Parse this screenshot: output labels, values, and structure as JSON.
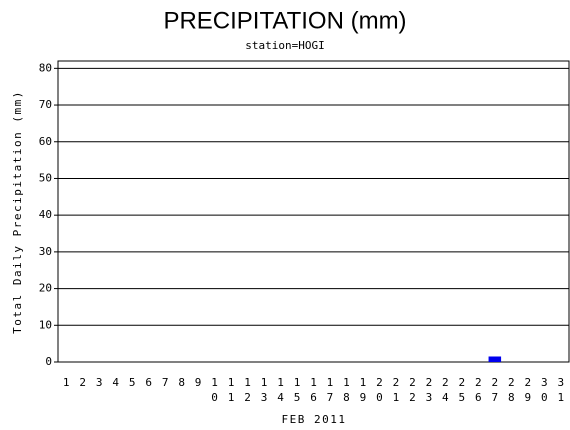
{
  "chart_data": {
    "type": "bar",
    "title": "PRECIPITATION (mm)",
    "subtitle": "station=HOGI",
    "y_label": "Total Daily Precipitation (mm)",
    "x_label": "FEB 2011",
    "categories": [
      "1",
      "2",
      "3",
      "4",
      "5",
      "6",
      "7",
      "8",
      "9",
      "10",
      "11",
      "12",
      "13",
      "14",
      "15",
      "16",
      "17",
      "18",
      "19",
      "20",
      "21",
      "22",
      "23",
      "24",
      "25",
      "26",
      "27",
      "28",
      "29",
      "30",
      "31"
    ],
    "values": [
      0,
      0,
      0,
      0,
      0,
      0,
      0,
      0,
      0,
      0,
      0,
      0,
      0,
      0,
      0,
      0,
      0,
      0,
      0,
      0,
      0,
      0,
      0,
      0,
      0,
      0,
      1.5,
      0,
      0,
      0,
      0
    ],
    "color": "#0000ee",
    "ylim": [
      0,
      82
    ],
    "yticks": [
      0,
      10,
      20,
      30,
      40,
      50,
      60,
      70,
      80
    ],
    "grid": true
  }
}
